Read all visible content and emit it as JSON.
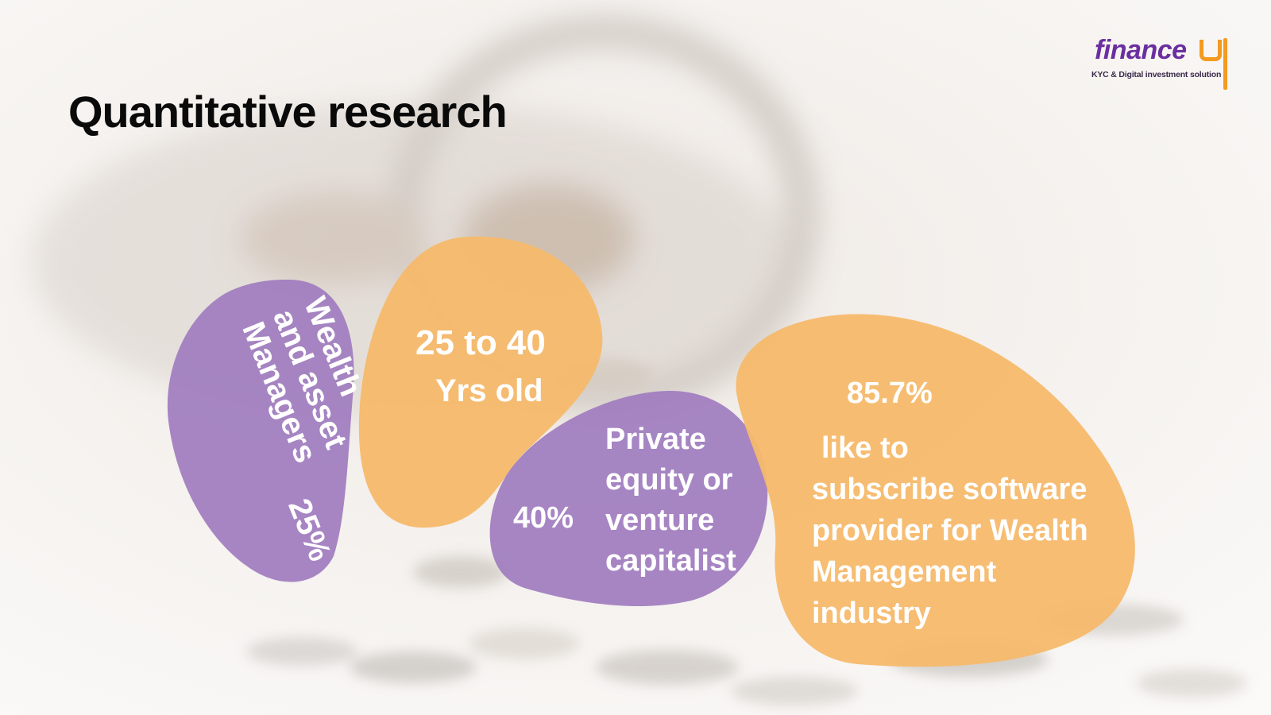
{
  "slide": {
    "title": "Quantitative research"
  },
  "logo": {
    "wordmark": "finance",
    "tagline": "KYC & Digital investment solution"
  },
  "colors": {
    "purple": "#9f7cbf",
    "orange": "#f6b96b",
    "title": "#0a0a0a",
    "logo_purple": "#6b2fa0",
    "logo_orange": "#f39a1f"
  },
  "stats": {
    "wealth": {
      "lines": [
        "Wealth",
        "and asset",
        "Managers"
      ],
      "value": "25%"
    },
    "age": {
      "line1": "25 to 40",
      "line2": "Yrs old"
    },
    "private_equity": {
      "value": "40%",
      "lines": [
        "Private",
        "equity or",
        "venture",
        "capitalist"
      ]
    },
    "subscribe": {
      "value": "85.7%",
      "lines": [
        "like to",
        "subscribe software",
        "provider for Wealth",
        "Management",
        "industry"
      ]
    }
  }
}
